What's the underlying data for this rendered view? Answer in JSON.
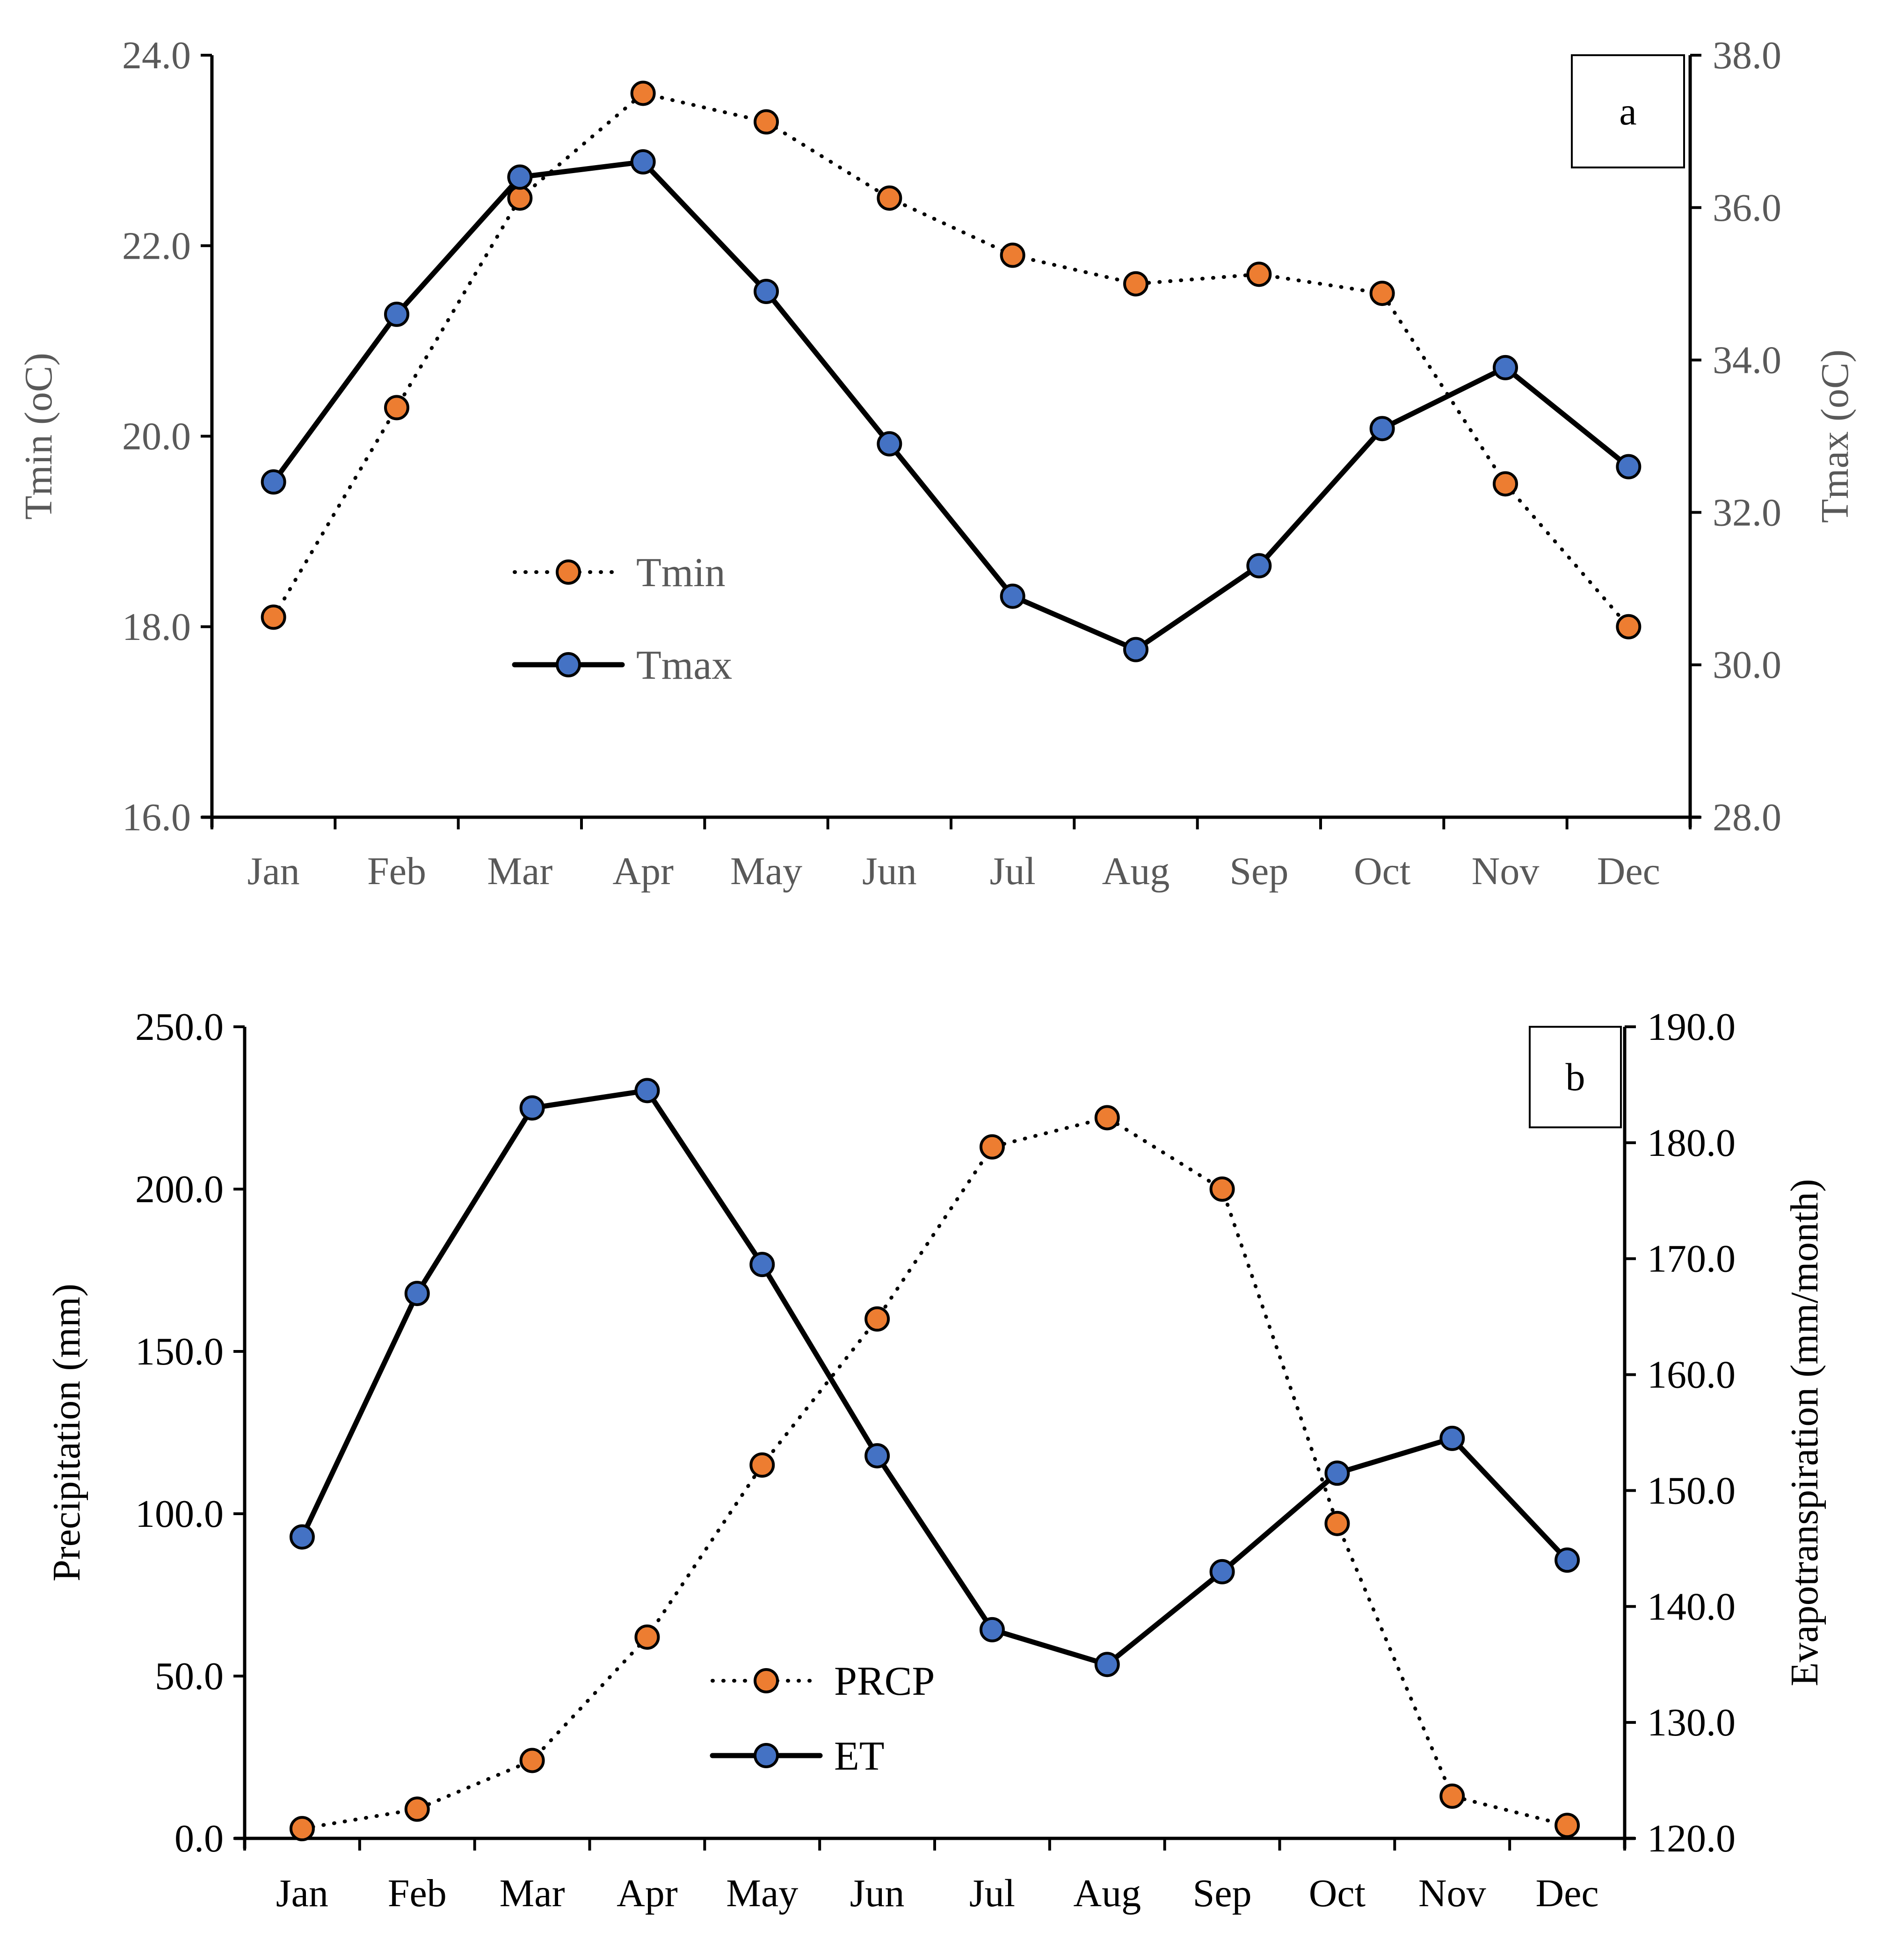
{
  "colors": {
    "orange": "#ED7D31",
    "blue": "#4472C4",
    "line": "#000000",
    "gray_text": "#595959",
    "black_text": "#000000"
  },
  "chart_data": [
    {
      "type": "line",
      "panel_label": "a",
      "categories": [
        "Jan",
        "Feb",
        "Mar",
        "Apr",
        "May",
        "Jun",
        "Jul",
        "Aug",
        "Sep",
        "Oct",
        "Nov",
        "Dec"
      ],
      "ylabel": "Tmin (oC)",
      "y2label": "Tmax (oC)",
      "ylim": [
        16,
        24
      ],
      "y2lim": [
        28,
        38
      ],
      "yticks": [
        "16.0",
        "18.0",
        "20.0",
        "22.0",
        "24.0"
      ],
      "y2ticks": [
        "28.0",
        "30.0",
        "32.0",
        "34.0",
        "36.0",
        "38.0"
      ],
      "series": [
        {
          "name": "Tmin",
          "axis": "left",
          "style": "dotted",
          "marker_color": "orange",
          "values": [
            18.1,
            20.3,
            22.5,
            23.6,
            23.3,
            22.5,
            21.9,
            21.6,
            21.7,
            21.5,
            19.5,
            18.0
          ]
        },
        {
          "name": "Tmax",
          "axis": "right",
          "style": "solid",
          "marker_color": "blue",
          "values": [
            32.4,
            34.6,
            36.4,
            36.6,
            34.9,
            32.9,
            30.9,
            30.2,
            31.3,
            33.1,
            33.9,
            32.6
          ]
        }
      ]
    },
    {
      "type": "line",
      "panel_label": "b",
      "categories": [
        "Jan",
        "Feb",
        "Mar",
        "Apr",
        "May",
        "Jun",
        "Jul",
        "Aug",
        "Sep",
        "Oct",
        "Nov",
        "Dec"
      ],
      "ylabel": "Precipitation (mm)",
      "y2label": "Evapotranspiration (mm/month)",
      "ylim": [
        0,
        250
      ],
      "y2lim": [
        120,
        190
      ],
      "yticks": [
        "0.0",
        "50.0",
        "100.0",
        "150.0",
        "200.0",
        "250.0"
      ],
      "y2ticks": [
        "120.0",
        "130.0",
        "140.0",
        "150.0",
        "160.0",
        "170.0",
        "180.0",
        "190.0"
      ],
      "series": [
        {
          "name": "PRCP",
          "axis": "left",
          "style": "dotted",
          "marker_color": "orange",
          "values": [
            3,
            9,
            24,
            62,
            115,
            160,
            213,
            222,
            200,
            97,
            13,
            4
          ]
        },
        {
          "name": "ET",
          "axis": "right",
          "style": "solid",
          "marker_color": "blue",
          "values": [
            146,
            167,
            183,
            184.5,
            169.5,
            153,
            138,
            135,
            143,
            151.5,
            154.5,
            144
          ]
        }
      ]
    }
  ]
}
